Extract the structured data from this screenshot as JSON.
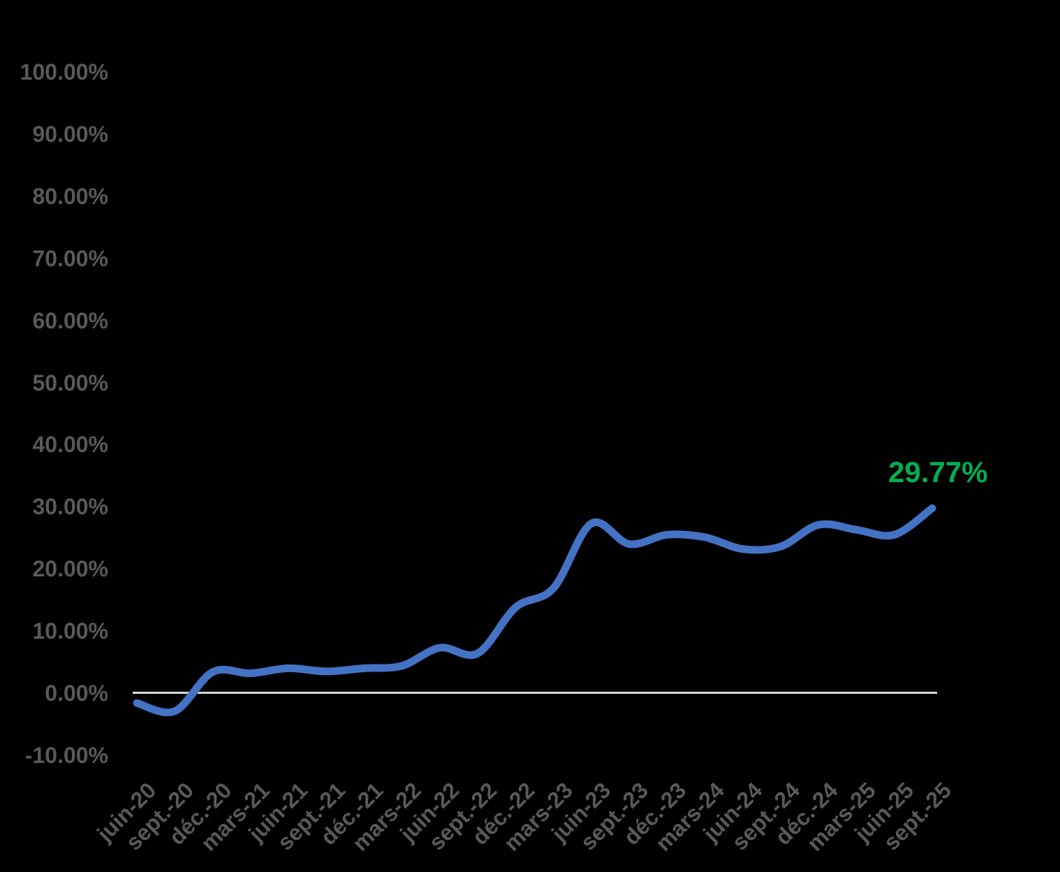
{
  "chart_data": {
    "type": "line",
    "title": "",
    "categories": [
      "juin-20",
      "sept.-20",
      "déc.-20",
      "mars-21",
      "juin-21",
      "sept.-21",
      "déc.-21",
      "mars-22",
      "juin-22",
      "sept.-22",
      "déc.-22",
      "mars-23",
      "juin-23",
      "sept.-23",
      "déc.-23",
      "mars-24",
      "juin-24",
      "sept.-24",
      "déc.-24",
      "mars-25",
      "juin-25",
      "sept.-25"
    ],
    "values": [
      -1.6,
      -2.9,
      3.4,
      3.2,
      4.0,
      3.5,
      4.0,
      4.4,
      7.3,
      6.4,
      13.8,
      16.9,
      27.3,
      24.0,
      25.5,
      25.1,
      23.2,
      23.6,
      27.1,
      26.3,
      25.5,
      29.77
    ],
    "final_value_label": "29.77%",
    "y_tick_labels": [
      "100.00%",
      "90.00%",
      "80.00%",
      "70.00%",
      "60.00%",
      "50.00%",
      "40.00%",
      "30.00%",
      "20.00%",
      "10.00%",
      "0.00%",
      "-10.00%"
    ],
    "y_tick_values": [
      100,
      90,
      80,
      70,
      60,
      50,
      40,
      30,
      20,
      10,
      0,
      -10
    ],
    "ylim": [
      -10,
      100
    ],
    "xlabel": "",
    "ylabel": "",
    "xlabel_rotation_deg": 45,
    "grid": "off",
    "legend": "none",
    "line_smoothing": "on",
    "colors": {
      "line": "#4472C4",
      "final_label": "#00B050",
      "axis_line": "#D9D9D9",
      "tick_text": "#595959",
      "background": "#000000"
    }
  }
}
